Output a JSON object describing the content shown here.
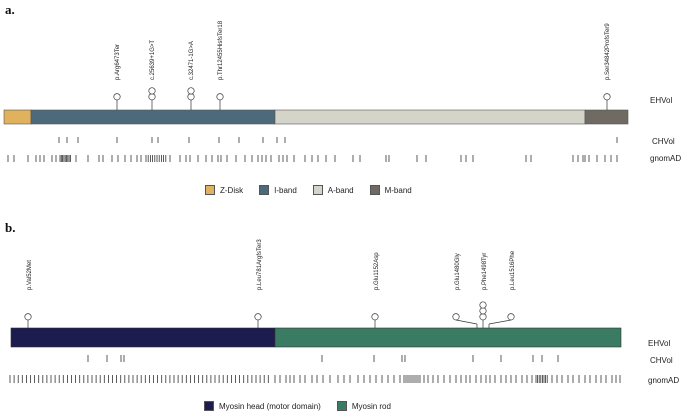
{
  "panels": {
    "a": {
      "label": "a.",
      "variants": [
        {
          "text": "p.Arg6473Ter",
          "count": 1
        },
        {
          "text": "c.25639+1G>T",
          "count": 2
        },
        {
          "text": "c.32471-1G>A",
          "count": 2
        },
        {
          "text": "p.Thr12455HisfsTer18",
          "count": 1
        },
        {
          "text": "p.Ser34842ProfsTer9",
          "count": 1
        }
      ],
      "row_labels": {
        "ehvol": "EHVol",
        "chvol": "CHVol",
        "gnomad": "gnomAD"
      },
      "domains": [
        {
          "name": "Z-Disk",
          "color": "#e0b25e"
        },
        {
          "name": "I-band",
          "color": "#4d6a7a"
        },
        {
          "name": "A-band",
          "color": "#d5d4c9"
        },
        {
          "name": "M-band",
          "color": "#6f6b63"
        }
      ]
    },
    "b": {
      "label": "b.",
      "variants": [
        {
          "text": "p.Val52Met",
          "count": 1
        },
        {
          "text": "p.Leu781ArgfsTer3",
          "count": 1
        },
        {
          "text": "p.Glu1152Asp",
          "count": 1
        },
        {
          "text": "p.Glu1480Gly",
          "count": 1
        },
        {
          "text": "p.Phe1498Tyr",
          "count": 3
        },
        {
          "text": "p.Leu1516Phe",
          "count": 1
        }
      ],
      "row_labels": {
        "ehvol": "EHVol",
        "chvol": "CHVol",
        "gnomad": "gnomAD"
      },
      "domains": [
        {
          "name": "Myosin head (motor domain)",
          "color": "#1c1c4f"
        },
        {
          "name": "Myosin rod",
          "color": "#3a7b63"
        }
      ]
    }
  }
}
